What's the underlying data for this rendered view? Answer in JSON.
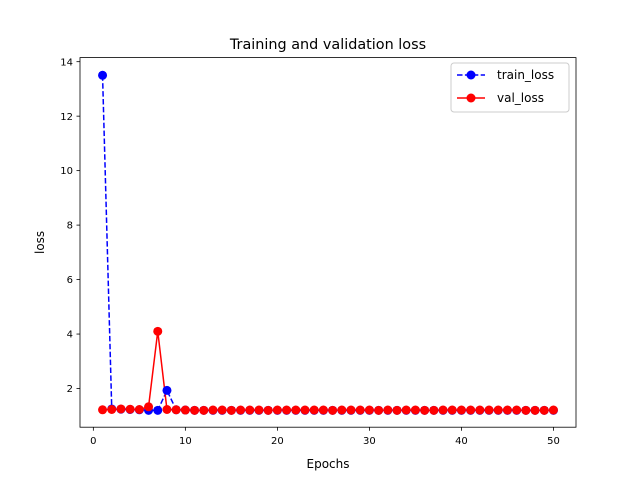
{
  "chart_data": {
    "type": "line",
    "title": "Training and validation loss",
    "xlabel": "Epochs",
    "ylabel": "loss",
    "xlim": [
      -1.45,
      52.45
    ],
    "ylim": [
      0.58,
      14.15
    ],
    "xticks": [
      0,
      10,
      20,
      30,
      40,
      50
    ],
    "yticks": [
      2,
      4,
      6,
      8,
      10,
      12,
      14
    ],
    "xtick_labels": [
      "0",
      "10",
      "20",
      "30",
      "40",
      "50"
    ],
    "ytick_labels": [
      "2",
      "4",
      "6",
      "8",
      "10",
      "12",
      "14"
    ],
    "grid": false,
    "legend_position": "top-right",
    "x": [
      1,
      2,
      3,
      4,
      5,
      6,
      7,
      8,
      9,
      10,
      11,
      12,
      13,
      14,
      15,
      16,
      17,
      18,
      19,
      20,
      21,
      22,
      23,
      24,
      25,
      26,
      27,
      28,
      29,
      30,
      31,
      32,
      33,
      34,
      35,
      36,
      37,
      38,
      39,
      40,
      41,
      42,
      43,
      44,
      45,
      46,
      47,
      48,
      49,
      50
    ],
    "series": [
      {
        "name": "train_loss",
        "color": "#0000ff",
        "line_style": "dashed",
        "marker": "circle",
        "values": [
          13.5,
          1.25,
          1.24,
          1.23,
          1.22,
          1.2,
          1.2,
          1.93,
          1.22,
          1.21,
          1.2,
          1.2,
          1.2,
          1.2,
          1.2,
          1.2,
          1.2,
          1.2,
          1.2,
          1.2,
          1.2,
          1.2,
          1.2,
          1.2,
          1.2,
          1.2,
          1.2,
          1.2,
          1.2,
          1.2,
          1.2,
          1.2,
          1.2,
          1.2,
          1.2,
          1.2,
          1.2,
          1.2,
          1.2,
          1.2,
          1.2,
          1.2,
          1.2,
          1.2,
          1.2,
          1.2,
          1.2,
          1.2,
          1.2,
          1.2
        ]
      },
      {
        "name": "val_loss",
        "color": "#ff0000",
        "line_style": "solid",
        "marker": "circle",
        "values": [
          1.22,
          1.23,
          1.25,
          1.24,
          1.23,
          1.33,
          4.1,
          1.23,
          1.22,
          1.21,
          1.2,
          1.2,
          1.21,
          1.21,
          1.2,
          1.21,
          1.21,
          1.21,
          1.2,
          1.21,
          1.21,
          1.21,
          1.21,
          1.21,
          1.21,
          1.2,
          1.21,
          1.21,
          1.21,
          1.21,
          1.2,
          1.21,
          1.2,
          1.21,
          1.21,
          1.2,
          1.2,
          1.21,
          1.21,
          1.21,
          1.21,
          1.21,
          1.21,
          1.21,
          1.21,
          1.21,
          1.2,
          1.2,
          1.2,
          1.21
        ]
      }
    ]
  }
}
